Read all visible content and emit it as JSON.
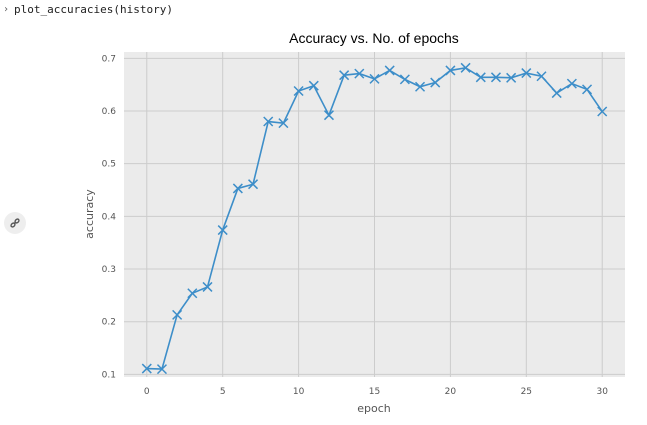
{
  "cell": {
    "code": "plot_accuracies(history)",
    "prompt_icon": "chevron-right-icon"
  },
  "sidebar": {
    "link_icon": "link-icon"
  },
  "chart_data": {
    "type": "line",
    "title": "Accuracy vs. No. of epochs",
    "xlabel": "epoch",
    "ylabel": "accuracy",
    "xlim": [
      -1.5,
      31.5
    ],
    "ylim": [
      0.095,
      0.712
    ],
    "xticks": [
      0,
      5,
      10,
      15,
      20,
      25,
      30
    ],
    "yticks": [
      0.1,
      0.2,
      0.3,
      0.4,
      0.5,
      0.6,
      0.7
    ],
    "grid": true,
    "marker": "x",
    "colors": {
      "line": "#3d8ec9",
      "background": "#ebebeb",
      "grid": "#cccccc"
    },
    "series": [
      {
        "x": [
          0,
          1,
          2,
          3,
          4,
          5,
          6,
          7,
          8,
          9,
          10,
          11,
          12,
          13,
          14,
          15,
          16,
          17,
          18,
          19,
          20,
          21,
          22,
          23,
          24,
          25,
          26,
          27,
          28,
          29,
          30
        ],
        "values": [
          0.111,
          0.11,
          0.213,
          0.254,
          0.266,
          0.374,
          0.453,
          0.461,
          0.58,
          0.577,
          0.638,
          0.648,
          0.592,
          0.668,
          0.671,
          0.661,
          0.677,
          0.66,
          0.646,
          0.654,
          0.677,
          0.682,
          0.664,
          0.664,
          0.663,
          0.672,
          0.666,
          0.634,
          0.652,
          0.641,
          0.599
        ]
      }
    ]
  }
}
